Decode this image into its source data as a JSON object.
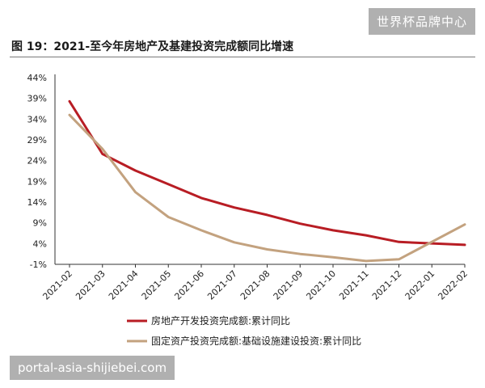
{
  "header": {
    "figure_title": "图 19：2021-至今年房地产及基建投资完成额同比增速"
  },
  "watermarks": {
    "top": "世界杯品牌中心",
    "bottom": "portal-asia-shijiebei.com"
  },
  "chart_data": {
    "type": "line",
    "title": "",
    "xlabel": "",
    "ylabel": "",
    "categories": [
      "2021-02",
      "2021-03",
      "2021-04",
      "2021-05",
      "2021-06",
      "2021-07",
      "2021-08",
      "2021-09",
      "2021-10",
      "2021-11",
      "2021-12",
      "2022-01",
      "2022-02"
    ],
    "ylim": [
      -1,
      44
    ],
    "yticks": [
      -1,
      4,
      9,
      14,
      19,
      24,
      29,
      34,
      39,
      44
    ],
    "ytick_labels": [
      "-1%",
      "4%",
      "9%",
      "14%",
      "19%",
      "24%",
      "29%",
      "34%",
      "39%",
      "44%"
    ],
    "grid": false,
    "legend_position": "bottom",
    "series": [
      {
        "name": "房地产开发投资完成额:累计同比",
        "color": "#b81d24",
        "values": [
          38.3,
          25.6,
          21.6,
          18.3,
          15.0,
          12.7,
          10.9,
          8.8,
          7.2,
          6.0,
          4.4,
          null,
          3.7
        ]
      },
      {
        "name": "固定资产投资完成额:基础设施建设投资:累计同比",
        "color": "#c3a27f",
        "values": [
          35.0,
          26.8,
          16.4,
          10.4,
          7.2,
          4.3,
          2.6,
          1.5,
          0.7,
          -0.2,
          0.2,
          null,
          8.6
        ]
      }
    ]
  }
}
